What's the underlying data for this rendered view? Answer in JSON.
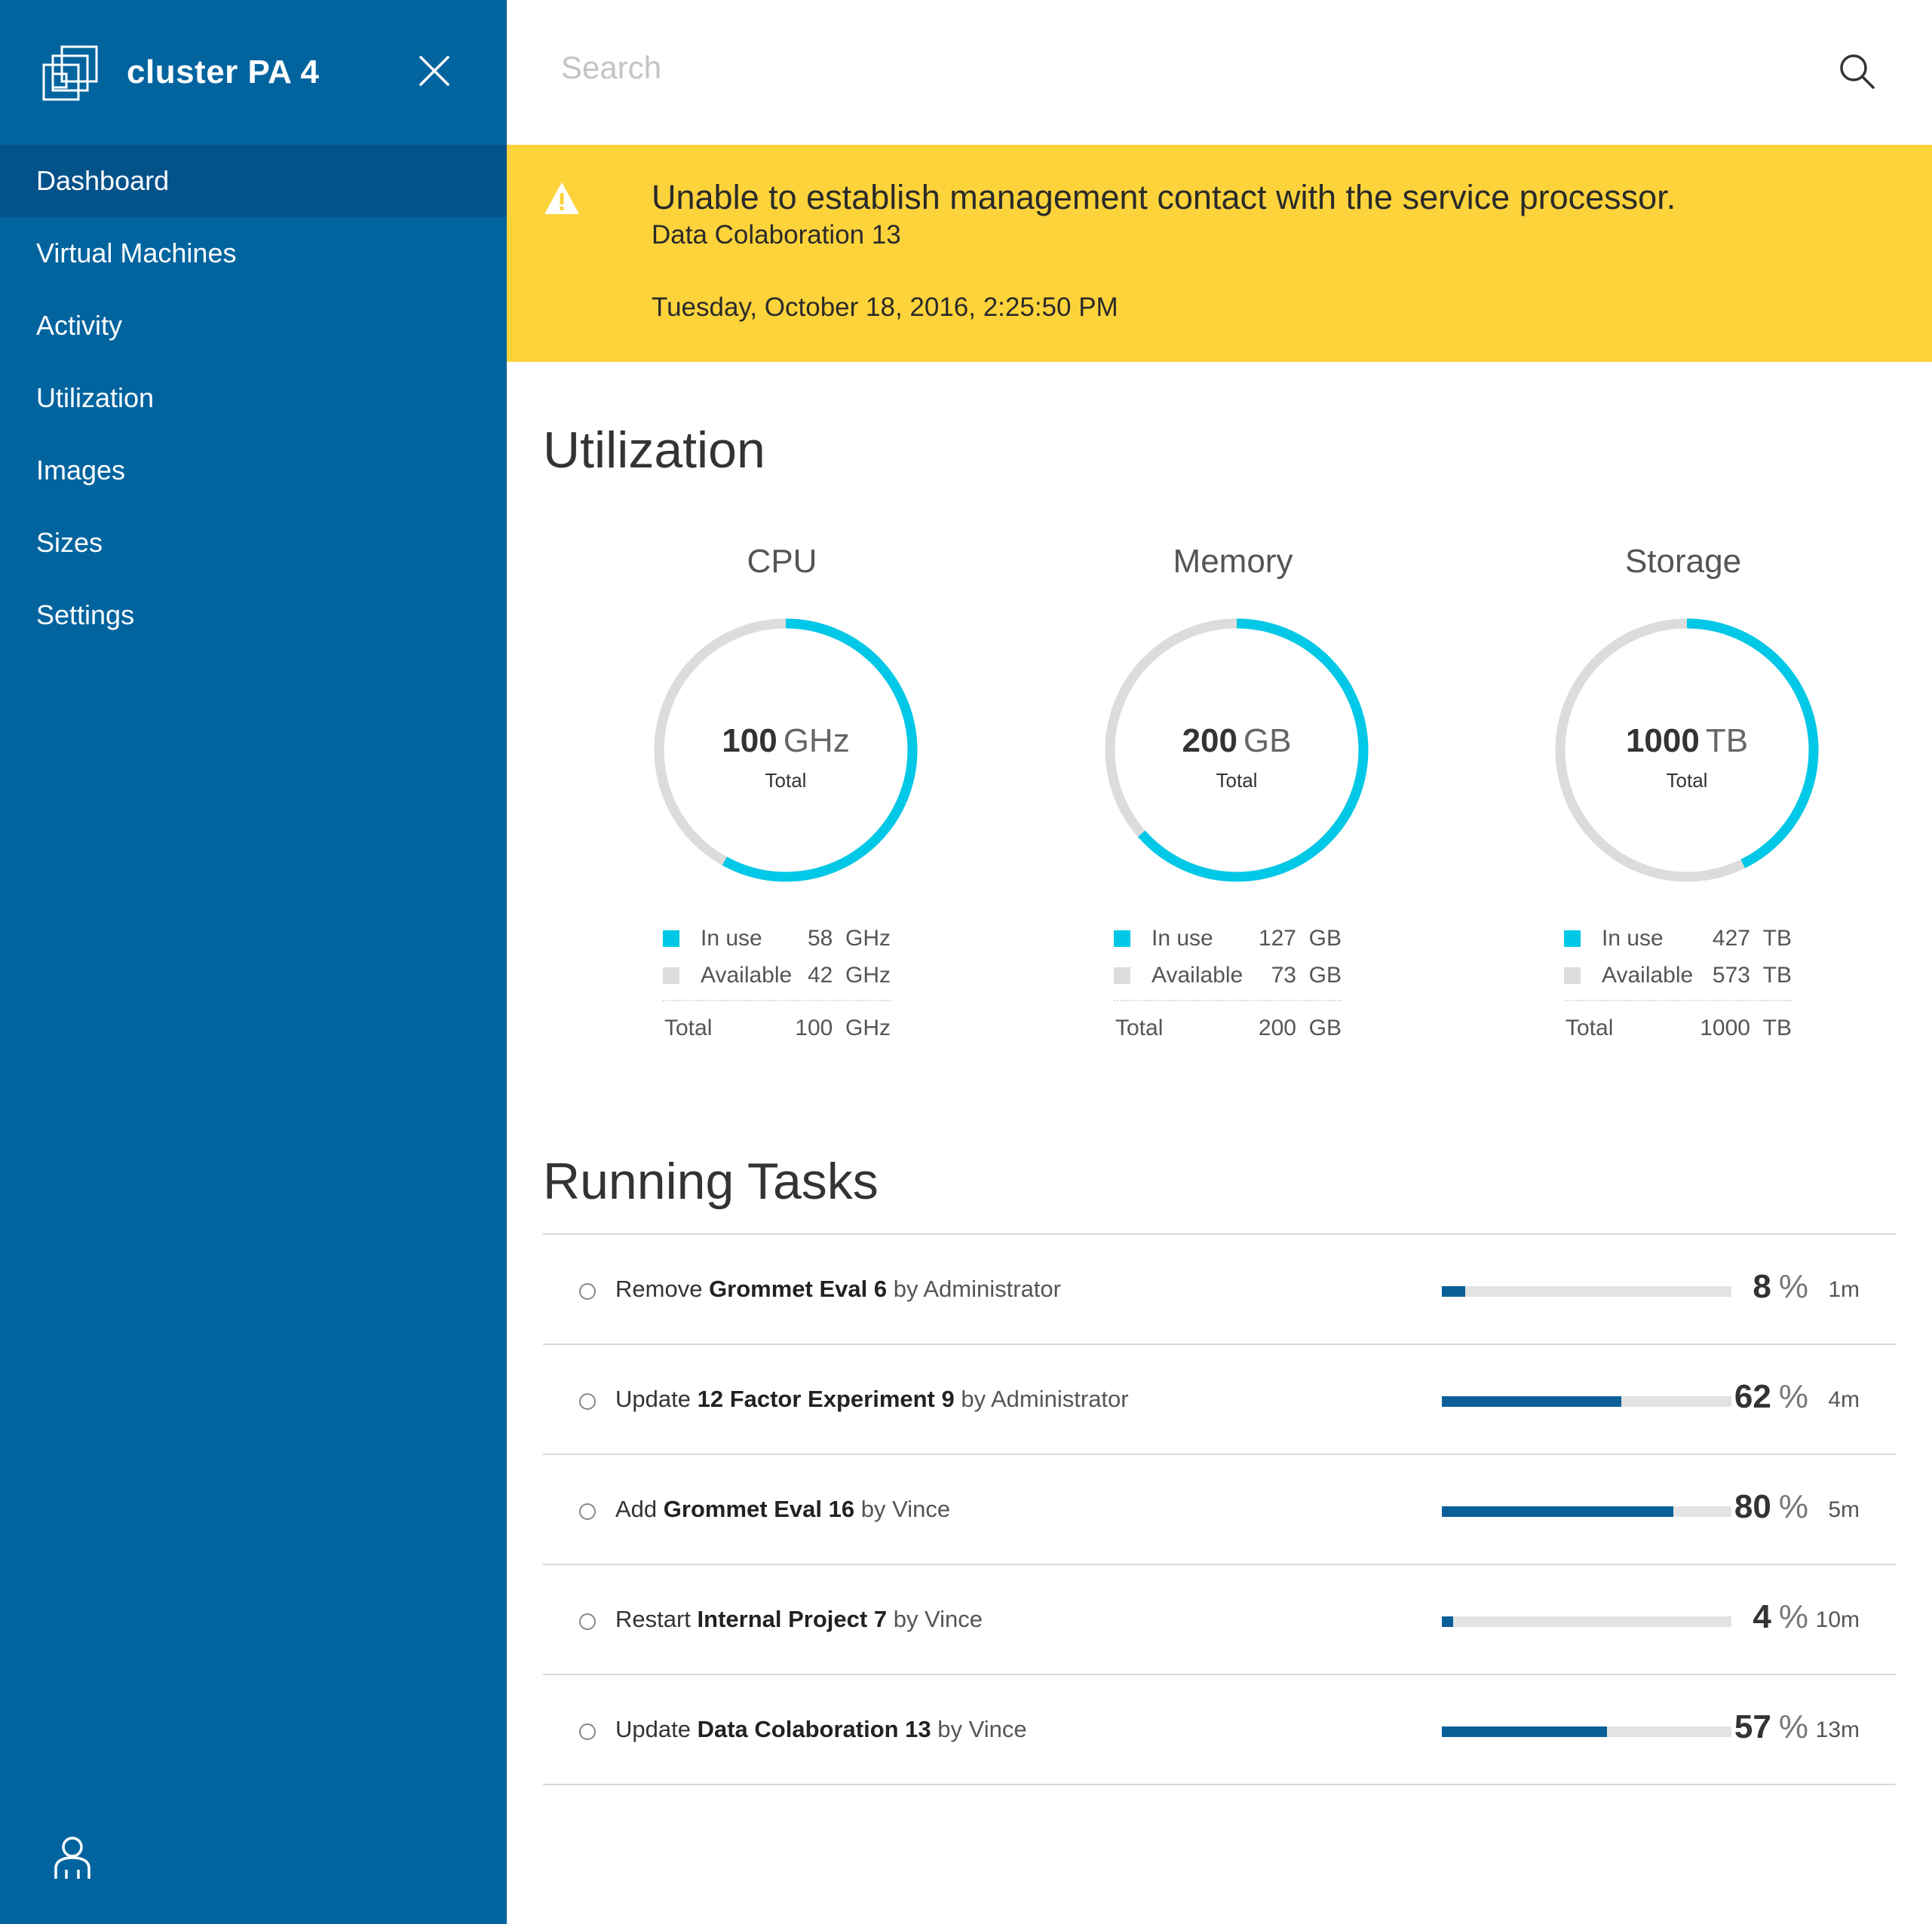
{
  "sidebar": {
    "title": "cluster PA 4",
    "items": [
      {
        "label": "Dashboard",
        "active": true
      },
      {
        "label": "Virtual Machines"
      },
      {
        "label": "Activity"
      },
      {
        "label": "Utilization"
      },
      {
        "label": "Images"
      },
      {
        "label": "Sizes"
      },
      {
        "label": "Settings"
      }
    ]
  },
  "search": {
    "placeholder": "Search"
  },
  "alert": {
    "message": "Unable to establish management contact with the service processor.",
    "source": "Data Colaboration 13",
    "timestamp": "Tuesday, October 18, 2016, 2:25:50 PM"
  },
  "utilization": {
    "title": "Utilization",
    "gauges": [
      {
        "label": "CPU",
        "total": "100",
        "unit": "GHz",
        "total_caption": "Total",
        "in_use_label": "In use",
        "in_use": "58",
        "available_label": "Available",
        "available": "42",
        "total_label": "Total",
        "fraction": 0.58
      },
      {
        "label": "Memory",
        "total": "200",
        "unit": "GB",
        "total_caption": "Total",
        "in_use_label": "In use",
        "in_use": "127",
        "available_label": "Available",
        "available": "73",
        "total_label": "Total",
        "fraction": 0.635
      },
      {
        "label": "Storage",
        "total": "1000",
        "unit": "TB",
        "total_caption": "Total",
        "in_use_label": "In use",
        "in_use": "427",
        "available_label": "Available",
        "available": "573",
        "total_label": "Total",
        "fraction": 0.427
      }
    ]
  },
  "running_tasks": {
    "title": "Running Tasks",
    "items": [
      {
        "verb": "Remove",
        "object": "Grommet Eval 6",
        "by": "by Administrator",
        "percent": 8,
        "percent_symbol": "%",
        "age": "1m"
      },
      {
        "verb": "Update",
        "object": "12 Factor Experiment 9",
        "by": "by Administrator",
        "percent": 62,
        "percent_symbol": "%",
        "age": "4m"
      },
      {
        "verb": "Add",
        "object": "Grommet Eval 16",
        "by": "by Vince",
        "percent": 80,
        "percent_symbol": "%",
        "age": "5m"
      },
      {
        "verb": "Restart",
        "object": "Internal Project 7",
        "by": "by Vince",
        "percent": 4,
        "percent_symbol": "%",
        "age": "10m"
      },
      {
        "verb": "Update",
        "object": "Data Colaboration 13",
        "by": "by Vince",
        "percent": 57,
        "percent_symbol": "%",
        "age": "13m"
      }
    ]
  },
  "colors": {
    "sidebar": "#01649f",
    "sidebar_active": "#03528a",
    "alert": "#fdd33b",
    "gauge_used": "#00c8e6",
    "gauge_available": "#dcdcdc",
    "progress": "#0b5f98",
    "progress_track": "#e3e3e3"
  },
  "icons": {
    "logo": "stacked-windows-icon",
    "close": "close-icon",
    "search": "search-icon",
    "alert": "warning-icon",
    "user": "user-icon"
  }
}
